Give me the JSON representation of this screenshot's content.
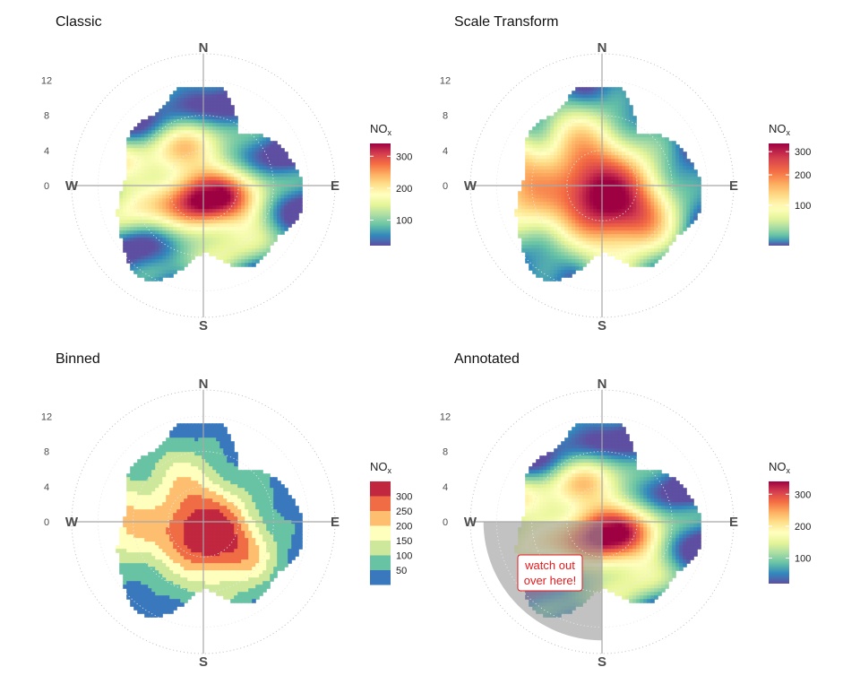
{
  "chart_data": [
    {
      "type": "heatmap",
      "subtype": "polar-plot",
      "title": "Classic",
      "radial_ticks": [
        "12",
        "8",
        "4",
        "0"
      ],
      "radial_tick_values": [
        12,
        8,
        4,
        0
      ],
      "rlim": [
        0,
        15
      ],
      "compass": {
        "north": "N",
        "east": "E",
        "south": "S",
        "west": "W"
      },
      "legend": {
        "title": "NO",
        "title_sub": "x",
        "kind": "continuous",
        "range": [
          20,
          340
        ],
        "scale": "linear",
        "ticks": [
          {
            "value": 100,
            "label": "100"
          },
          {
            "value": 200,
            "label": "200"
          },
          {
            "value": 300,
            "label": "300"
          }
        ]
      },
      "palette": [
        "#5e4fa2",
        "#3288bd",
        "#66c2a5",
        "#abdda4",
        "#e6f598",
        "#ffffbf",
        "#fee08b",
        "#fdae61",
        "#f46d43",
        "#d53e4f",
        "#9e0142"
      ]
    },
    {
      "type": "heatmap",
      "subtype": "polar-plot",
      "title": "Scale Transform",
      "radial_ticks": [
        "12",
        "8",
        "4",
        "0"
      ],
      "radial_tick_values": [
        12,
        8,
        4,
        0
      ],
      "rlim": [
        0,
        15
      ],
      "compass": {
        "north": "N",
        "east": "E",
        "south": "S",
        "west": "W"
      },
      "legend": {
        "title": "NO",
        "title_sub": "x",
        "kind": "continuous",
        "range": [
          20,
          340
        ],
        "scale": "sqrt",
        "ticks": [
          {
            "value": 100,
            "label": "100"
          },
          {
            "value": 200,
            "label": "200"
          },
          {
            "value": 300,
            "label": "300"
          }
        ]
      },
      "palette": [
        "#5e4fa2",
        "#3288bd",
        "#66c2a5",
        "#abdda4",
        "#e6f598",
        "#ffffbf",
        "#fee08b",
        "#fdae61",
        "#f46d43",
        "#d53e4f",
        "#9e0142"
      ]
    },
    {
      "type": "heatmap",
      "subtype": "polar-plot",
      "title": "Binned",
      "radial_ticks": [
        "12",
        "8",
        "4",
        "0"
      ],
      "radial_tick_values": [
        12,
        8,
        4,
        0
      ],
      "rlim": [
        0,
        15
      ],
      "compass": {
        "north": "N",
        "east": "E",
        "south": "S",
        "west": "W"
      },
      "legend": {
        "title": "NO",
        "title_sub": "x",
        "kind": "binned",
        "bins": [
          {
            "label": "300",
            "color": "#c1273f"
          },
          {
            "label": "250",
            "color": "#ef6c45"
          },
          {
            "label": "200",
            "color": "#fdbe6f"
          },
          {
            "label": "150",
            "color": "#fefebd"
          },
          {
            "label": "100",
            "color": "#cde89a"
          },
          {
            "label": "50",
            "color": "#68c3a4"
          },
          {
            "label": "",
            "color": "#3a78be"
          }
        ]
      }
    },
    {
      "type": "heatmap",
      "subtype": "polar-plot",
      "title": "Annotated",
      "radial_ticks": [
        "12",
        "8",
        "4",
        "0"
      ],
      "radial_tick_values": [
        12,
        8,
        4,
        0
      ],
      "rlim": [
        0,
        15
      ],
      "compass": {
        "north": "N",
        "east": "E",
        "south": "S",
        "west": "W"
      },
      "annotation": {
        "text_line1": "watch out",
        "text_line2": "over here!",
        "color": "#e41a1c",
        "shaded_sector": {
          "from_deg": 180,
          "to_deg": 270,
          "r_max": 13.5
        }
      },
      "legend": {
        "title": "NO",
        "title_sub": "x",
        "kind": "continuous",
        "range": [
          20,
          340
        ],
        "scale": "linear",
        "ticks": [
          {
            "value": 100,
            "label": "100"
          },
          {
            "value": 200,
            "label": "200"
          },
          {
            "value": 300,
            "label": "300"
          }
        ]
      },
      "palette": [
        "#5e4fa2",
        "#3288bd",
        "#66c2a5",
        "#abdda4",
        "#e6f598",
        "#ffffbf",
        "#fee08b",
        "#fdae61",
        "#f46d43",
        "#d53e4f",
        "#9e0142"
      ]
    }
  ]
}
